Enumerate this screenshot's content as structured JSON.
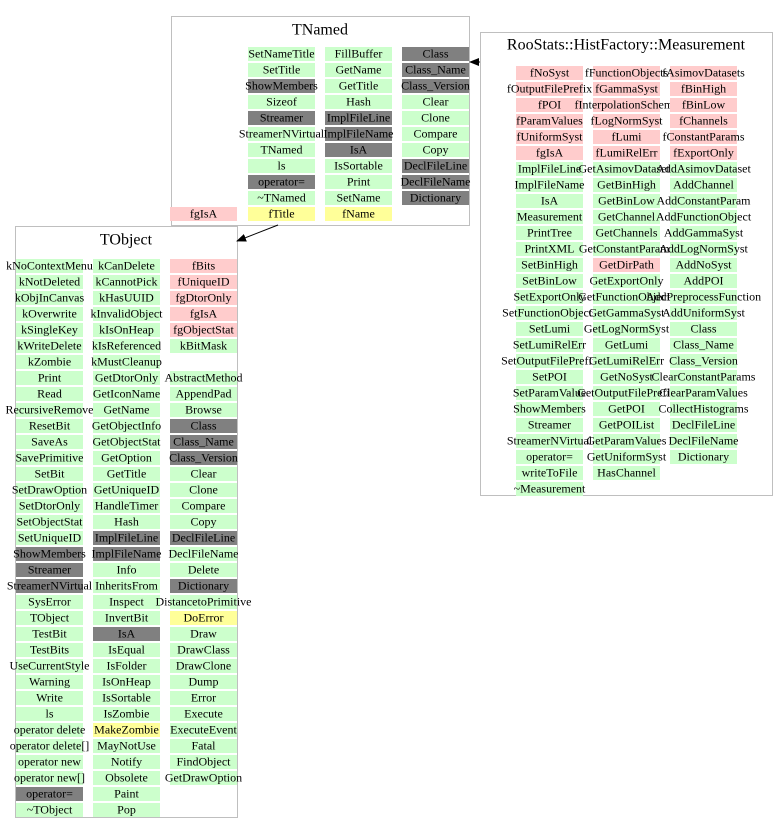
{
  "classes": [
    {
      "title": "TNamed",
      "columns": [
        [
          {
            "text": "SetNameTitle",
            "color": "#ccffcc"
          },
          {
            "text": "SetTitle",
            "color": "#ccffcc"
          },
          {
            "text": "ShowMembers",
            "color": "#808080"
          },
          {
            "text": "Sizeof",
            "color": "#ccffcc"
          },
          {
            "text": "Streamer",
            "color": "#808080"
          },
          {
            "text": "StreamerNVirtual",
            "color": "#ccffcc"
          },
          {
            "text": "TNamed",
            "color": "#ccffcc"
          },
          {
            "text": "ls",
            "color": "#ccffcc"
          },
          {
            "text": "operator=",
            "color": "#808080"
          },
          {
            "text": "~TNamed",
            "color": "#ccffcc"
          },
          {
            "text": "fTitle",
            "color": "#ffff99"
          }
        ],
        [
          {
            "text": "FillBuffer",
            "color": "#ccffcc"
          },
          {
            "text": "GetName",
            "color": "#ccffcc"
          },
          {
            "text": "GetTitle",
            "color": "#ccffcc"
          },
          {
            "text": "Hash",
            "color": "#ccffcc"
          },
          {
            "text": "ImplFileLine",
            "color": "#808080"
          },
          {
            "text": "ImplFileName",
            "color": "#808080"
          },
          {
            "text": "IsA",
            "color": "#808080"
          },
          {
            "text": "IsSortable",
            "color": "#ccffcc"
          },
          {
            "text": "Print",
            "color": "#ccffcc"
          },
          {
            "text": "SetName",
            "color": "#ccffcc"
          },
          {
            "text": "fName",
            "color": "#ffff99"
          }
        ],
        [
          {
            "text": "Class",
            "color": "#808080"
          },
          {
            "text": "Class_Name",
            "color": "#808080"
          },
          {
            "text": "Class_Version",
            "color": "#808080"
          },
          {
            "text": "Clear",
            "color": "#ccffcc"
          },
          {
            "text": "Clone",
            "color": "#ccffcc"
          },
          {
            "text": "Compare",
            "color": "#ccffcc"
          },
          {
            "text": "Copy",
            "color": "#ccffcc"
          },
          {
            "text": "DeclFileLine",
            "color": "#808080"
          },
          {
            "text": "DeclFileName",
            "color": "#808080"
          },
          {
            "text": "Dictionary",
            "color": "#808080"
          }
        ]
      ]
    },
    {
      "title": "TObject",
      "columns": [
        [
          {
            "text": "kNoContextMenu",
            "color": "#ccffcc"
          },
          {
            "text": "kNotDeleted",
            "color": "#ccffcc"
          },
          {
            "text": "kObjInCanvas",
            "color": "#ccffcc"
          },
          {
            "text": "kOverwrite",
            "color": "#ccffcc"
          },
          {
            "text": "kSingleKey",
            "color": "#ccffcc"
          },
          {
            "text": "kWriteDelete",
            "color": "#ccffcc"
          },
          {
            "text": "kZombie",
            "color": "#ccffcc"
          },
          {
            "text": "Print",
            "color": "#ccffcc"
          },
          {
            "text": "Read",
            "color": "#ccffcc"
          },
          {
            "text": "RecursiveRemove",
            "color": "#ccffcc"
          },
          {
            "text": "ResetBit",
            "color": "#ccffcc"
          },
          {
            "text": "SaveAs",
            "color": "#ccffcc"
          },
          {
            "text": "SavePrimitive",
            "color": "#ccffcc"
          },
          {
            "text": "SetBit",
            "color": "#ccffcc"
          },
          {
            "text": "SetDrawOption",
            "color": "#ccffcc"
          },
          {
            "text": "SetDtorOnly",
            "color": "#ccffcc"
          },
          {
            "text": "SetObjectStat",
            "color": "#ccffcc"
          },
          {
            "text": "SetUniqueID",
            "color": "#ccffcc"
          },
          {
            "text": "ShowMembers",
            "color": "#808080"
          },
          {
            "text": "Streamer",
            "color": "#808080"
          },
          {
            "text": "StreamerNVirtual",
            "color": "#808080"
          },
          {
            "text": "SysError",
            "color": "#ccffcc"
          },
          {
            "text": "TObject",
            "color": "#ccffcc"
          },
          {
            "text": "TestBit",
            "color": "#ccffcc"
          },
          {
            "text": "TestBits",
            "color": "#ccffcc"
          },
          {
            "text": "UseCurrentStyle",
            "color": "#ccffcc"
          },
          {
            "text": "Warning",
            "color": "#ccffcc"
          },
          {
            "text": "Write",
            "color": "#ccffcc"
          },
          {
            "text": "ls",
            "color": "#ccffcc"
          },
          {
            "text": "operator delete",
            "color": "#ccffcc"
          },
          {
            "text": "operator delete[]",
            "color": "#ccffcc"
          },
          {
            "text": "operator new",
            "color": "#ccffcc"
          },
          {
            "text": "operator new[]",
            "color": "#ccffcc"
          },
          {
            "text": "operator=",
            "color": "#808080"
          },
          {
            "text": "~TObject",
            "color": "#ccffcc"
          }
        ],
        [
          {
            "text": "kCanDelete",
            "color": "#ccffcc"
          },
          {
            "text": "kCannotPick",
            "color": "#ccffcc"
          },
          {
            "text": "kHasUUID",
            "color": "#ccffcc"
          },
          {
            "text": "kInvalidObject",
            "color": "#ccffcc"
          },
          {
            "text": "kIsOnHeap",
            "color": "#ccffcc"
          },
          {
            "text": "kIsReferenced",
            "color": "#ccffcc"
          },
          {
            "text": "kMustCleanup",
            "color": "#ccffcc"
          },
          {
            "text": "GetDtorOnly",
            "color": "#ccffcc"
          },
          {
            "text": "GetIconName",
            "color": "#ccffcc"
          },
          {
            "text": "GetName",
            "color": "#ccffcc"
          },
          {
            "text": "GetObjectInfo",
            "color": "#ccffcc"
          },
          {
            "text": "GetObjectStat",
            "color": "#ccffcc"
          },
          {
            "text": "GetOption",
            "color": "#ccffcc"
          },
          {
            "text": "GetTitle",
            "color": "#ccffcc"
          },
          {
            "text": "GetUniqueID",
            "color": "#ccffcc"
          },
          {
            "text": "HandleTimer",
            "color": "#ccffcc"
          },
          {
            "text": "Hash",
            "color": "#ccffcc"
          },
          {
            "text": "ImplFileLine",
            "color": "#808080"
          },
          {
            "text": "ImplFileName",
            "color": "#808080"
          },
          {
            "text": "Info",
            "color": "#ccffcc"
          },
          {
            "text": "InheritsFrom",
            "color": "#ccffcc"
          },
          {
            "text": "Inspect",
            "color": "#ccffcc"
          },
          {
            "text": "InvertBit",
            "color": "#ccffcc"
          },
          {
            "text": "IsA",
            "color": "#808080"
          },
          {
            "text": "IsEqual",
            "color": "#ccffcc"
          },
          {
            "text": "IsFolder",
            "color": "#ccffcc"
          },
          {
            "text": "IsOnHeap",
            "color": "#ccffcc"
          },
          {
            "text": "IsSortable",
            "color": "#ccffcc"
          },
          {
            "text": "IsZombie",
            "color": "#ccffcc"
          },
          {
            "text": "MakeZombie",
            "color": "#ffff99"
          },
          {
            "text": "MayNotUse",
            "color": "#ccffcc"
          },
          {
            "text": "Notify",
            "color": "#ccffcc"
          },
          {
            "text": "Obsolete",
            "color": "#ccffcc"
          },
          {
            "text": "Paint",
            "color": "#ccffcc"
          },
          {
            "text": "Pop",
            "color": "#ccffcc"
          }
        ],
        [
          {
            "text": "fBits",
            "color": "#ffcccc"
          },
          {
            "text": "fUniqueID",
            "color": "#ffcccc"
          },
          {
            "text": "fgDtorOnly",
            "color": "#ffcccc"
          },
          {
            "text": "fgIsA",
            "color": "#ffcccc"
          },
          {
            "text": "fgObjectStat",
            "color": "#ffcccc"
          },
          {
            "text": "kBitMask",
            "color": "#ccffcc"
          },
          {
            "text": "AbstractMethod",
            "color": "#ccffcc"
          },
          {
            "text": "AppendPad",
            "color": "#ccffcc"
          },
          {
            "text": "Browse",
            "color": "#ccffcc"
          },
          {
            "text": "Class",
            "color": "#808080"
          },
          {
            "text": "Class_Name",
            "color": "#808080"
          },
          {
            "text": "Class_Version",
            "color": "#808080"
          },
          {
            "text": "Clear",
            "color": "#ccffcc"
          },
          {
            "text": "Clone",
            "color": "#ccffcc"
          },
          {
            "text": "Compare",
            "color": "#ccffcc"
          },
          {
            "text": "Copy",
            "color": "#ccffcc"
          },
          {
            "text": "DeclFileLine",
            "color": "#808080"
          },
          {
            "text": "DeclFileName",
            "color": "#ccffcc"
          },
          {
            "text": "Delete",
            "color": "#ccffcc"
          },
          {
            "text": "Dictionary",
            "color": "#808080"
          },
          {
            "text": "DistancetoPrimitive",
            "color": "#ccffcc"
          },
          {
            "text": "DoError",
            "color": "#ffff99"
          },
          {
            "text": "Draw",
            "color": "#ccffcc"
          },
          {
            "text": "DrawClass",
            "color": "#ccffcc"
          },
          {
            "text": "DrawClone",
            "color": "#ccffcc"
          },
          {
            "text": "Dump",
            "color": "#ccffcc"
          },
          {
            "text": "Error",
            "color": "#ccffcc"
          },
          {
            "text": "Execute",
            "color": "#ccffcc"
          },
          {
            "text": "ExecuteEvent",
            "color": "#ccffcc"
          },
          {
            "text": "Fatal",
            "color": "#ccffcc"
          },
          {
            "text": "FindObject",
            "color": "#ccffcc"
          },
          {
            "text": "GetDrawOption",
            "color": "#ccffcc"
          }
        ]
      ]
    },
    {
      "title": "RooStats::HistFactory::Measurement",
      "columns": [
        [
          {
            "text": "fNoSyst",
            "color": "#ffcccc"
          },
          {
            "text": "fOutputFilePrefix",
            "color": "#ffcccc"
          },
          {
            "text": "fPOI",
            "color": "#ffcccc"
          },
          {
            "text": "fParamValues",
            "color": "#ffcccc"
          },
          {
            "text": "fUniformSyst",
            "color": "#ffcccc"
          },
          {
            "text": "fgIsA",
            "color": "#ffcccc"
          },
          {
            "text": "ImplFileLine",
            "color": "#ccffcc"
          },
          {
            "text": "ImplFileName",
            "color": "#ccffcc"
          },
          {
            "text": "IsA",
            "color": "#ccffcc"
          },
          {
            "text": "Measurement",
            "color": "#ccffcc"
          },
          {
            "text": "PrintTree",
            "color": "#ccffcc"
          },
          {
            "text": "PrintXML",
            "color": "#ccffcc"
          },
          {
            "text": "SetBinHigh",
            "color": "#ccffcc"
          },
          {
            "text": "SetBinLow",
            "color": "#ccffcc"
          },
          {
            "text": "SetExportOnly",
            "color": "#ccffcc"
          },
          {
            "text": "SetFunctionObjects",
            "color": "#ccffcc"
          },
          {
            "text": "SetLumi",
            "color": "#ccffcc"
          },
          {
            "text": "SetLumiRelErr",
            "color": "#ccffcc"
          },
          {
            "text": "SetOutputFilePrefix",
            "color": "#ccffcc"
          },
          {
            "text": "SetPOI",
            "color": "#ccffcc"
          },
          {
            "text": "SetParamValue",
            "color": "#ccffcc"
          },
          {
            "text": "ShowMembers",
            "color": "#ccffcc"
          },
          {
            "text": "Streamer",
            "color": "#ccffcc"
          },
          {
            "text": "StreamerNVirtual",
            "color": "#ccffcc"
          },
          {
            "text": "operator=",
            "color": "#ccffcc"
          },
          {
            "text": "writeToFile",
            "color": "#ccffcc"
          },
          {
            "text": "~Measurement",
            "color": "#ccffcc"
          }
        ],
        [
          {
            "text": "fFunctionObjects",
            "color": "#ffcccc"
          },
          {
            "text": "fGammaSyst",
            "color": "#ffcccc"
          },
          {
            "text": "fInterpolationScheme",
            "color": "#ffcccc"
          },
          {
            "text": "fLogNormSyst",
            "color": "#ffcccc"
          },
          {
            "text": "fLumi",
            "color": "#ffcccc"
          },
          {
            "text": "fLumiRelErr",
            "color": "#ffcccc"
          },
          {
            "text": "GetAsimovDatasets",
            "color": "#ccffcc"
          },
          {
            "text": "GetBinHigh",
            "color": "#ccffcc"
          },
          {
            "text": "GetBinLow",
            "color": "#ccffcc"
          },
          {
            "text": "GetChannel",
            "color": "#ccffcc"
          },
          {
            "text": "GetChannels",
            "color": "#ccffcc"
          },
          {
            "text": "GetConstantParams",
            "color": "#ccffcc"
          },
          {
            "text": "GetDirPath",
            "color": "#ffcccc"
          },
          {
            "text": "GetExportOnly",
            "color": "#ccffcc"
          },
          {
            "text": "GetFunctionObjects",
            "color": "#ccffcc"
          },
          {
            "text": "GetGammaSyst",
            "color": "#ccffcc"
          },
          {
            "text": "GetLogNormSyst",
            "color": "#ccffcc"
          },
          {
            "text": "GetLumi",
            "color": "#ccffcc"
          },
          {
            "text": "GetLumiRelErr",
            "color": "#ccffcc"
          },
          {
            "text": "GetNoSyst",
            "color": "#ccffcc"
          },
          {
            "text": "GetOutputFilePrefix",
            "color": "#ccffcc"
          },
          {
            "text": "GetPOI",
            "color": "#ccffcc"
          },
          {
            "text": "GetPOIList",
            "color": "#ccffcc"
          },
          {
            "text": "GetParamValues",
            "color": "#ccffcc"
          },
          {
            "text": "GetUniformSyst",
            "color": "#ccffcc"
          },
          {
            "text": "HasChannel",
            "color": "#ccffcc"
          }
        ],
        [
          {
            "text": "fAsimovDatasets",
            "color": "#ffcccc"
          },
          {
            "text": "fBinHigh",
            "color": "#ffcccc"
          },
          {
            "text": "fBinLow",
            "color": "#ffcccc"
          },
          {
            "text": "fChannels",
            "color": "#ffcccc"
          },
          {
            "text": "fConstantParams",
            "color": "#ffcccc"
          },
          {
            "text": "fExportOnly",
            "color": "#ffcccc"
          },
          {
            "text": "AddAsimovDataset",
            "color": "#ccffcc"
          },
          {
            "text": "AddChannel",
            "color": "#ccffcc"
          },
          {
            "text": "AddConstantParam",
            "color": "#ccffcc"
          },
          {
            "text": "AddFunctionObject",
            "color": "#ccffcc"
          },
          {
            "text": "AddGammaSyst",
            "color": "#ccffcc"
          },
          {
            "text": "AddLogNormSyst",
            "color": "#ccffcc"
          },
          {
            "text": "AddNoSyst",
            "color": "#ccffcc"
          },
          {
            "text": "AddPOI",
            "color": "#ccffcc"
          },
          {
            "text": "AddPreprocessFunction",
            "color": "#ccffcc"
          },
          {
            "text": "AddUniformSyst",
            "color": "#ccffcc"
          },
          {
            "text": "Class",
            "color": "#ccffcc"
          },
          {
            "text": "Class_Name",
            "color": "#ccffcc"
          },
          {
            "text": "Class_Version",
            "color": "#ccffcc"
          },
          {
            "text": "ClearConstantParams",
            "color": "#ccffcc"
          },
          {
            "text": "ClearParamValues",
            "color": "#ccffcc"
          },
          {
            "text": "CollectHistograms",
            "color": "#ccffcc"
          },
          {
            "text": "DeclFileLine",
            "color": "#ccffcc"
          },
          {
            "text": "DeclFileName",
            "color": "#ccffcc"
          },
          {
            "text": "Dictionary",
            "color": "#ccffcc"
          }
        ]
      ]
    }
  ],
  "extra": {
    "text": "fgIsA",
    "color": "#ffcccc"
  }
}
